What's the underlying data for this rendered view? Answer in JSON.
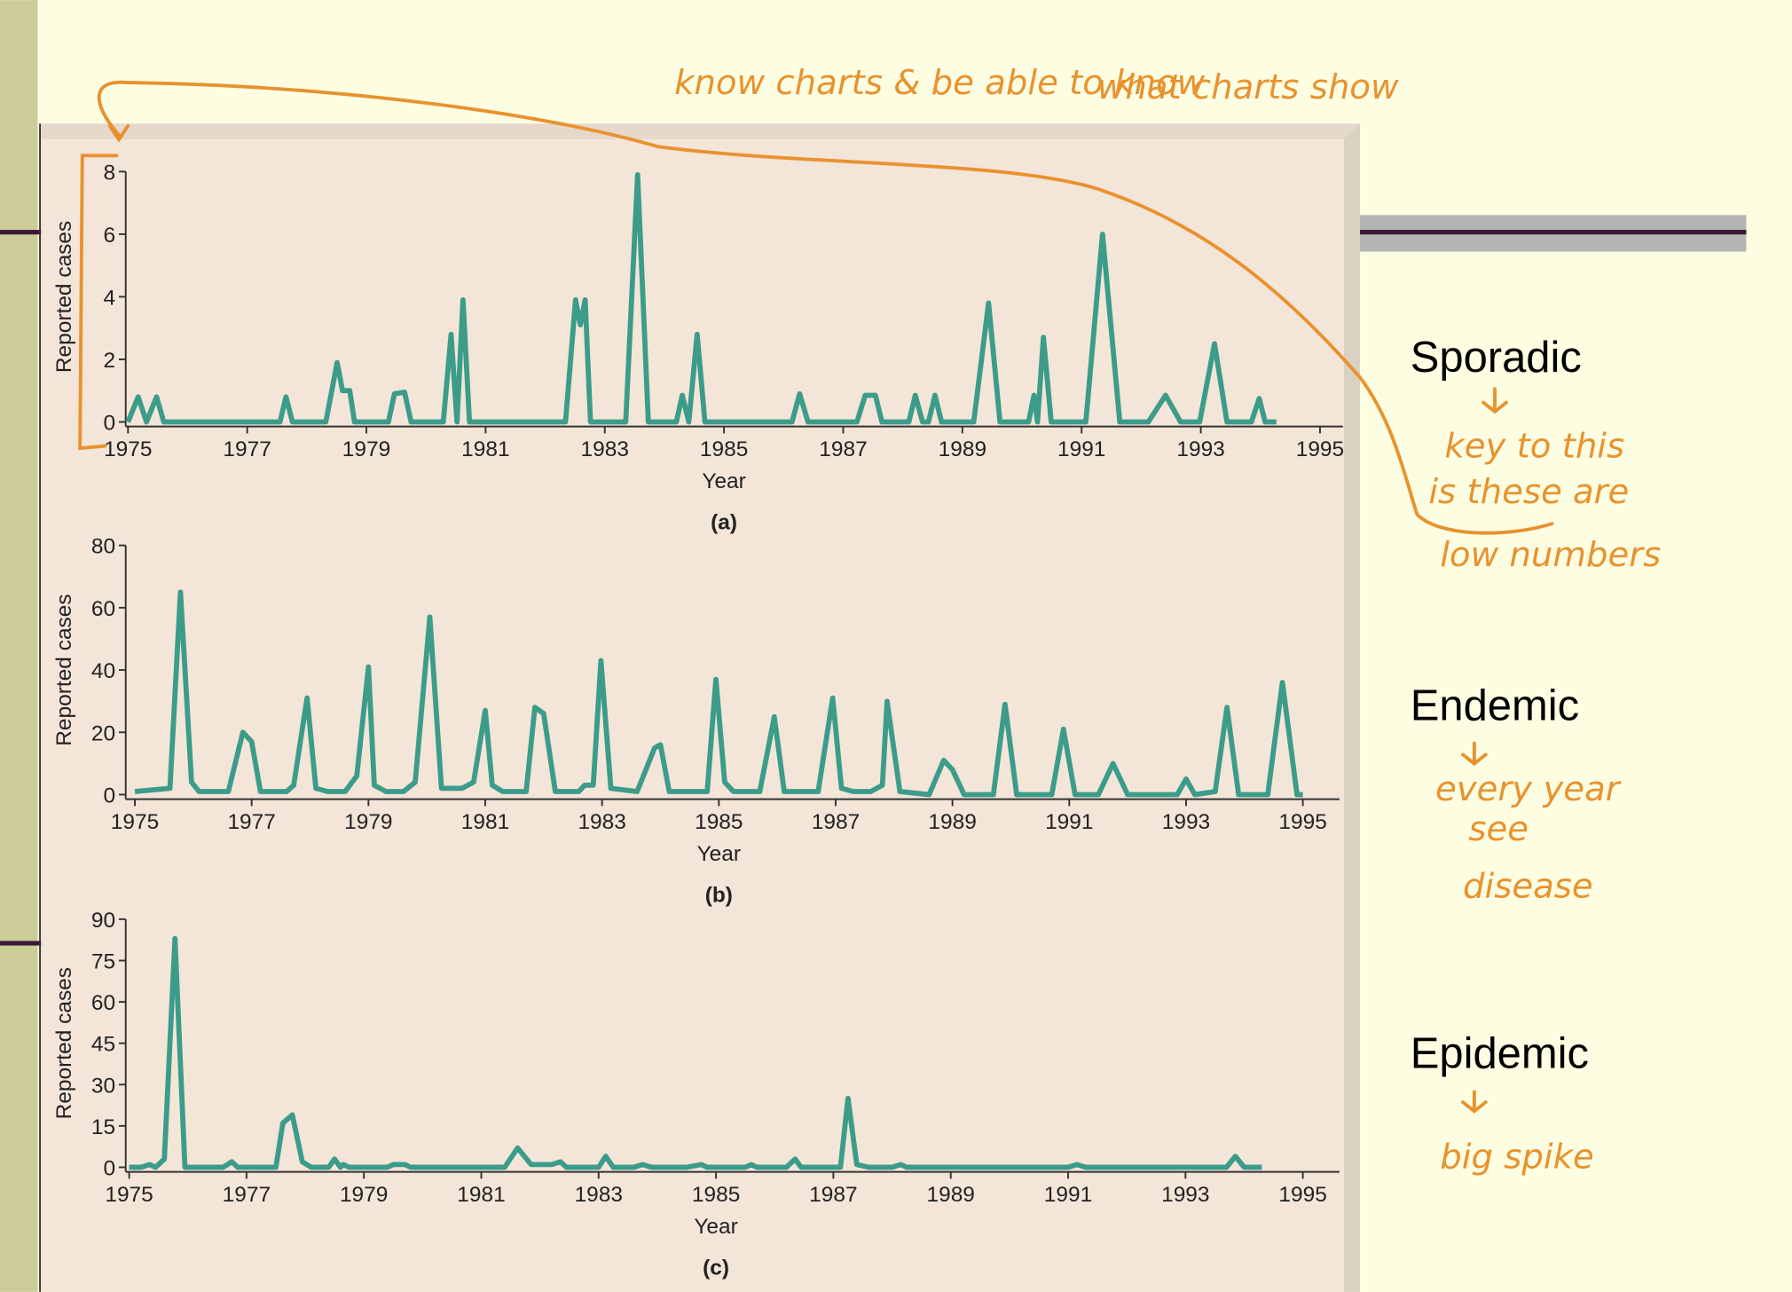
{
  "chart_data": [
    {
      "type": "line",
      "caption": "(a)",
      "xlabel": "Year",
      "ylabel": "Reported cases",
      "color": "#3c9c8a",
      "xlim": [
        1975,
        1995
      ],
      "xticks": [
        1975,
        1977,
        1979,
        1981,
        1983,
        1985,
        1987,
        1989,
        1991,
        1993,
        1995
      ],
      "ylim": [
        0,
        8
      ],
      "yticks": [
        0,
        2,
        4,
        6,
        8
      ],
      "x": [
        1975.0,
        1975.17,
        1975.31,
        1975.48,
        1975.6,
        1977.55,
        1977.65,
        1977.76,
        1978.32,
        1978.51,
        1978.6,
        1978.72,
        1978.8,
        1979.37,
        1979.47,
        1979.64,
        1979.75,
        1980.29,
        1980.42,
        1980.52,
        1980.62,
        1980.73,
        1982.34,
        1982.51,
        1982.59,
        1982.67,
        1982.76,
        1983.35,
        1983.55,
        1983.73,
        1984.2,
        1984.3,
        1984.41,
        1984.55,
        1984.68,
        1986.14,
        1986.27,
        1986.41,
        1987.23,
        1987.37,
        1987.54,
        1987.65,
        1988.1,
        1988.21,
        1988.33,
        1988.43,
        1988.54,
        1988.65,
        1989.19,
        1989.44,
        1989.63,
        1990.11,
        1990.2,
        1990.26,
        1990.36,
        1990.49,
        1991.07,
        1991.35,
        1991.64,
        1992.12,
        1992.41,
        1992.66,
        1992.98,
        1993.23,
        1993.44,
        1993.85,
        1993.98,
        1994.08,
        1994.27
      ],
      "values": [
        0,
        0.8,
        0,
        0.8,
        0,
        0,
        0.8,
        0,
        0,
        1.9,
        1.0,
        1.0,
        0,
        0,
        0.9,
        0.95,
        0,
        0,
        2.8,
        0,
        3.9,
        0,
        0,
        3.9,
        3.1,
        3.9,
        0,
        0,
        7.9,
        0,
        0,
        0.85,
        0,
        2.8,
        0,
        0,
        0.9,
        0,
        0,
        0.85,
        0.85,
        0,
        0,
        0.85,
        0,
        0,
        0.85,
        0,
        0,
        3.8,
        0,
        0,
        0.85,
        0,
        2.7,
        0,
        0,
        6.0,
        0,
        0,
        0.85,
        0,
        0,
        2.5,
        0,
        0,
        0.75,
        0,
        0
      ]
    },
    {
      "type": "line",
      "caption": "(b)",
      "xlabel": "Year",
      "ylabel": "Reported cases",
      "color": "#3c9c8a",
      "xlim": [
        1975,
        1995
      ],
      "xticks": [
        1975,
        1977,
        1979,
        1981,
        1983,
        1985,
        1987,
        1989,
        1991,
        1993,
        1995
      ],
      "ylim": [
        0,
        80
      ],
      "yticks": [
        0,
        20,
        40,
        60,
        80
      ],
      "x": [
        1975,
        1975.6,
        1975.78,
        1975.97,
        1976.1,
        1976.6,
        1976.85,
        1977.0,
        1977.15,
        1977.6,
        1977.72,
        1977.95,
        1978.1,
        1978.3,
        1978.6,
        1978.8,
        1979.0,
        1979.1,
        1979.3,
        1979.6,
        1979.8,
        1980.05,
        1980.25,
        1980.6,
        1980.8,
        1981.0,
        1981.12,
        1981.3,
        1981.7,
        1981.85,
        1982.0,
        1982.2,
        1982.6,
        1982.7,
        1982.85,
        1982.98,
        1983.15,
        1983.6,
        1983.9,
        1984.0,
        1984.15,
        1984.8,
        1984.95,
        1985.1,
        1985.25,
        1985.7,
        1985.95,
        1986.12,
        1986.7,
        1986.95,
        1987.1,
        1987.3,
        1987.6,
        1987.8,
        1987.88,
        1988.1,
        1988.6,
        1988.85,
        1989.0,
        1989.2,
        1989.7,
        1989.9,
        1990.1,
        1990.7,
        1990.9,
        1991.1,
        1991.5,
        1991.75,
        1992.0,
        1992.85,
        1993.0,
        1993.15,
        1993.5,
        1993.7,
        1993.9,
        1994.4,
        1994.65,
        1994.9,
        1995.0
      ],
      "values": [
        1,
        2,
        65,
        4,
        1,
        1,
        20,
        17,
        1,
        1,
        3,
        31,
        2,
        1,
        1,
        6,
        41,
        3,
        1,
        1,
        4,
        57,
        2,
        2,
        4,
        27,
        3,
        1,
        1,
        28,
        26,
        1,
        1,
        3,
        3,
        43,
        2,
        1,
        15,
        16,
        1,
        1,
        37,
        4,
        1,
        1,
        25,
        1,
        1,
        31,
        2,
        1,
        1,
        3,
        30,
        1,
        0,
        11,
        8,
        0,
        0,
        29,
        0,
        0,
        21,
        0,
        0,
        10,
        0,
        0,
        5,
        0,
        1,
        28,
        0,
        0,
        36,
        0,
        0
      ]
    },
    {
      "type": "line",
      "caption": "(c)",
      "xlabel": "Year",
      "ylabel": "Reported cases",
      "color": "#3c9c8a",
      "xlim": [
        1975,
        1995
      ],
      "xticks": [
        1975,
        1977,
        1979,
        1981,
        1983,
        1985,
        1987,
        1989,
        1991,
        1993,
        1995
      ],
      "ylim": [
        0,
        90
      ],
      "yticks": [
        0,
        15,
        30,
        45,
        60,
        75,
        90
      ],
      "x": [
        1975,
        1975.2,
        1975.35,
        1975.45,
        1975.6,
        1975.78,
        1975.95,
        1976.6,
        1976.75,
        1976.85,
        1977.5,
        1977.62,
        1977.78,
        1977.95,
        1978.1,
        1978.4,
        1978.5,
        1978.6,
        1978.65,
        1978.75,
        1979.4,
        1979.5,
        1979.7,
        1979.8,
        1981.4,
        1981.62,
        1981.85,
        1982.2,
        1982.35,
        1982.45,
        1983.0,
        1983.12,
        1983.25,
        1983.6,
        1983.75,
        1983.9,
        1984.5,
        1984.75,
        1984.85,
        1985.5,
        1985.6,
        1985.7,
        1986.2,
        1986.35,
        1986.45,
        1987.12,
        1987.25,
        1987.4,
        1987.6,
        1988.0,
        1988.15,
        1988.25,
        1991.0,
        1991.15,
        1991.3,
        1993.7,
        1993.85,
        1994.0,
        1994.3
      ],
      "values": [
        0,
        0,
        1,
        0,
        3,
        83,
        0,
        0,
        2,
        0,
        0,
        16,
        19,
        2,
        0,
        0,
        3,
        0,
        1,
        0,
        0,
        1,
        1,
        0,
        0,
        7,
        1,
        1,
        2,
        0,
        0,
        4,
        0,
        0,
        1,
        0,
        0,
        1,
        0,
        0,
        1,
        0,
        0,
        3,
        0,
        0,
        25,
        1,
        0,
        0,
        1,
        0,
        0,
        1,
        0,
        0,
        4,
        0,
        0
      ]
    }
  ],
  "labels": [
    "Sporadic",
    "Endemic",
    "Epidemic"
  ],
  "annotations": [
    "know charts & be able to know",
    "what charts show",
    "key to this",
    "is these are",
    "low numbers",
    "every year",
    "see",
    "disease",
    "big spike"
  ]
}
